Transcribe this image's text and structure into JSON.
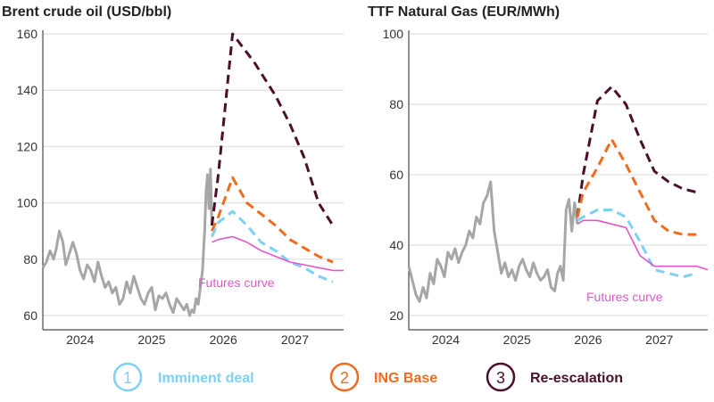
{
  "colors": {
    "history": "#a6a6a6",
    "imminent": "#7fd0f5",
    "base": "#f26b1d",
    "reescalation": "#4a0f2b",
    "futures": "#e456c8",
    "grid": "#d9d9d9",
    "axis": "#222222"
  },
  "legend": [
    {
      "num": "1",
      "label": "Imminent deal",
      "key": "imminent"
    },
    {
      "num": "2",
      "label": "ING Base",
      "key": "base"
    },
    {
      "num": "3",
      "label": "Re-escalation",
      "key": "reescalation"
    }
  ],
  "chart_data": [
    {
      "type": "line",
      "title": "Brent crude oil (USD/bbl)",
      "xlabel": "",
      "ylabel": "",
      "x_ticks": [
        "2024",
        "2025",
        "2026",
        "2027"
      ],
      "xlim": [
        2023.55,
        2027.75
      ],
      "ylim": [
        60,
        160
      ],
      "y_ticks": [
        60,
        80,
        100,
        120,
        140,
        160
      ],
      "grid": true,
      "annotation": "Futures curve",
      "series": [
        {
          "key": "history",
          "style": "solid",
          "x": [
            2023.55,
            2023.6,
            2023.65,
            2023.7,
            2023.74,
            2023.78,
            2023.83,
            2023.87,
            2023.92,
            2023.97,
            2024.02,
            2024.07,
            2024.12,
            2024.17,
            2024.22,
            2024.27,
            2024.32,
            2024.37,
            2024.42,
            2024.47,
            2024.52,
            2024.57,
            2024.62,
            2024.67,
            2024.72,
            2024.77,
            2024.82,
            2024.87,
            2024.92,
            2024.97,
            2025.02,
            2025.07,
            2025.12,
            2025.17,
            2025.22,
            2025.27,
            2025.32,
            2025.37,
            2025.42,
            2025.47,
            2025.52,
            2025.56,
            2025.6,
            2025.63,
            2025.66,
            2025.69,
            2025.72,
            2025.75,
            2025.78,
            2025.81,
            2025.83,
            2025.85,
            2025.87,
            2025.89,
            2025.91
          ],
          "y": [
            77,
            79,
            83,
            80,
            84,
            90,
            86,
            78,
            82,
            86,
            82,
            76,
            73,
            78,
            76,
            72,
            79,
            74,
            70,
            72,
            68,
            70,
            64,
            66,
            72,
            68,
            74,
            70,
            66,
            64,
            68,
            70,
            62,
            67,
            66,
            68,
            64,
            61,
            66,
            64,
            62,
            64,
            60,
            62,
            61,
            66,
            64,
            70,
            76,
            90,
            104,
            110,
            98,
            112,
            92
          ]
        },
        {
          "key": "reescalation",
          "style": "dashed",
          "x": [
            2025.91,
            2026.0,
            2026.2,
            2026.5,
            2026.8,
            2027.0,
            2027.2,
            2027.4,
            2027.6
          ],
          "y": [
            92,
            110,
            160,
            150,
            138,
            128,
            116,
            100,
            92
          ]
        },
        {
          "key": "base",
          "style": "dashed",
          "x": [
            2025.91,
            2026.0,
            2026.2,
            2026.4,
            2026.6,
            2026.8,
            2027.0,
            2027.2,
            2027.4,
            2027.6
          ],
          "y": [
            90,
            95,
            109,
            100,
            96,
            92,
            87,
            84,
            81,
            79
          ]
        },
        {
          "key": "imminent",
          "style": "dashed",
          "x": [
            2025.91,
            2026.0,
            2026.2,
            2026.4,
            2026.6,
            2026.8,
            2027.0,
            2027.2,
            2027.4,
            2027.6
          ],
          "y": [
            88,
            93,
            97,
            92,
            86,
            83,
            79,
            77,
            74,
            72
          ]
        },
        {
          "key": "futures",
          "style": "solid",
          "x": [
            2025.91,
            2026.0,
            2026.2,
            2026.4,
            2026.6,
            2026.8,
            2027.0,
            2027.2,
            2027.4,
            2027.6,
            2027.75
          ],
          "y": [
            86,
            87,
            88,
            86,
            83,
            81,
            79,
            78,
            77,
            76,
            76
          ]
        }
      ]
    },
    {
      "type": "line",
      "title": "TTF Natural Gas (EUR/MWh)",
      "xlabel": "",
      "ylabel": "",
      "x_ticks": [
        "2024",
        "2025",
        "2026",
        "2027"
      ],
      "xlim": [
        2023.55,
        2027.75
      ],
      "ylim": [
        20,
        100
      ],
      "y_ticks": [
        20,
        40,
        60,
        80,
        100
      ],
      "grid": true,
      "annotation": "Futures curve",
      "series": [
        {
          "key": "history",
          "style": "solid",
          "x": [
            2023.55,
            2023.6,
            2023.65,
            2023.7,
            2023.75,
            2023.8,
            2023.85,
            2023.9,
            2023.95,
            2024.0,
            2024.05,
            2024.1,
            2024.15,
            2024.2,
            2024.25,
            2024.3,
            2024.35,
            2024.4,
            2024.45,
            2024.5,
            2024.55,
            2024.6,
            2024.65,
            2024.7,
            2024.75,
            2024.8,
            2024.85,
            2024.9,
            2024.95,
            2025.0,
            2025.05,
            2025.1,
            2025.15,
            2025.2,
            2025.25,
            2025.3,
            2025.35,
            2025.4,
            2025.45,
            2025.5,
            2025.55,
            2025.6,
            2025.64,
            2025.68,
            2025.72,
            2025.76,
            2025.8,
            2025.84,
            2025.88,
            2025.92
          ],
          "y": [
            34,
            30,
            26,
            24,
            28,
            25,
            32,
            29,
            36,
            34,
            31,
            38,
            36,
            39,
            35,
            38,
            40,
            44,
            42,
            48,
            46,
            52,
            54,
            58,
            44,
            38,
            32,
            35,
            31,
            33,
            30,
            34,
            36,
            33,
            31,
            35,
            32,
            30,
            31,
            33,
            28,
            27,
            32,
            34,
            30,
            50,
            53,
            44,
            52,
            46
          ]
        },
        {
          "key": "reescalation",
          "style": "dashed",
          "x": [
            2025.92,
            2026.0,
            2026.2,
            2026.4,
            2026.6,
            2026.8,
            2027.0,
            2027.2,
            2027.4,
            2027.6
          ],
          "y": [
            48,
            60,
            81,
            85,
            80,
            70,
            61,
            58,
            56,
            55
          ]
        },
        {
          "key": "base",
          "style": "dashed",
          "x": [
            2025.92,
            2026.0,
            2026.2,
            2026.4,
            2026.6,
            2026.8,
            2027.0,
            2027.2,
            2027.4,
            2027.6
          ],
          "y": [
            48,
            55,
            62,
            70,
            63,
            55,
            47,
            44,
            43,
            43
          ]
        },
        {
          "key": "imminent",
          "style": "dashed",
          "x": [
            2025.92,
            2026.0,
            2026.2,
            2026.4,
            2026.6,
            2026.8,
            2027.0,
            2027.2,
            2027.4,
            2027.6
          ],
          "y": [
            47,
            48,
            50,
            50,
            48,
            41,
            33,
            32,
            31,
            32
          ]
        },
        {
          "key": "futures",
          "style": "solid",
          "x": [
            2025.92,
            2026.0,
            2026.2,
            2026.4,
            2026.6,
            2026.7,
            2026.8,
            2027.0,
            2027.2,
            2027.4,
            2027.6,
            2027.75
          ],
          "y": [
            46,
            47,
            47,
            46,
            45,
            41,
            37,
            34,
            34,
            34,
            34,
            33
          ]
        }
      ]
    }
  ]
}
